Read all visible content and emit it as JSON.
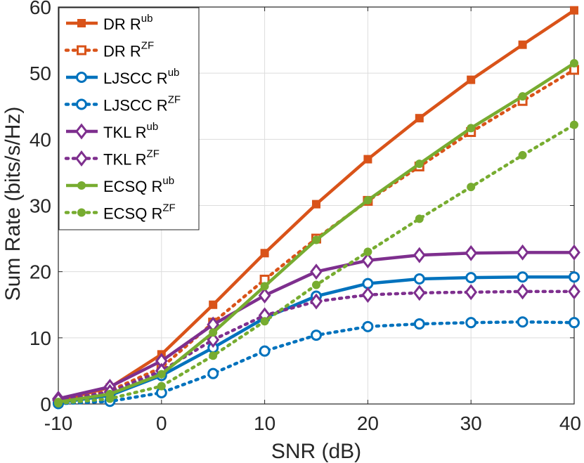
{
  "chart_data": {
    "type": "line",
    "title": "",
    "xlabel": "SNR (dB)",
    "ylabel": "Sum Rate (bits/s/Hz)",
    "xlim": [
      -10,
      40
    ],
    "ylim": [
      0,
      60
    ],
    "grid": true,
    "legend_position": "top-left",
    "x": [
      -10,
      -5,
      0,
      5,
      10,
      15,
      20,
      25,
      30,
      35,
      40
    ],
    "xticks": [
      "-10",
      "0",
      "10",
      "20",
      "30",
      "40"
    ],
    "xtick_values": [
      -10,
      0,
      10,
      20,
      30,
      40
    ],
    "yticks": [
      "0",
      "10",
      "20",
      "30",
      "40",
      "50",
      "60"
    ],
    "ytick_values": [
      0,
      10,
      20,
      30,
      40,
      50,
      60
    ],
    "series": [
      {
        "name": "DR R",
        "sup": "ub",
        "color": "#D95319",
        "dash": "solid",
        "marker": "square",
        "values": [
          0.5,
          2.5,
          7.5,
          15.0,
          22.8,
          30.2,
          37.0,
          43.2,
          49.0,
          54.3,
          59.5
        ]
      },
      {
        "name": "DR R",
        "sup": "ZF",
        "color": "#D95319",
        "dash": "dotted",
        "marker": "square",
        "values": [
          0.3,
          2.0,
          5.5,
          12.3,
          18.8,
          25.0,
          30.7,
          35.9,
          41.1,
          45.8,
          50.5
        ]
      },
      {
        "name": "LJSCC R",
        "sup": "ub",
        "color": "#0072BD",
        "dash": "solid",
        "marker": "circle",
        "values": [
          0.2,
          1.3,
          4.3,
          8.5,
          13.0,
          16.3,
          18.2,
          18.9,
          19.1,
          19.2,
          19.2
        ]
      },
      {
        "name": "LJSCC R",
        "sup": "ZF",
        "color": "#0072BD",
        "dash": "dotted",
        "marker": "circle",
        "values": [
          0.05,
          0.4,
          1.7,
          4.6,
          8.0,
          10.4,
          11.7,
          12.1,
          12.3,
          12.4,
          12.3
        ]
      },
      {
        "name": "TKL R",
        "sup": "ub",
        "color": "#7E2F8E",
        "dash": "solid",
        "marker": "diamond",
        "values": [
          0.8,
          2.6,
          6.5,
          12.0,
          16.4,
          20.0,
          21.7,
          22.5,
          22.8,
          22.9,
          22.9
        ]
      },
      {
        "name": "TKL R",
        "sup": "ZF",
        "color": "#7E2F8E",
        "dash": "dotted",
        "marker": "diamond",
        "values": [
          0.6,
          1.8,
          5.0,
          9.7,
          13.4,
          15.5,
          16.5,
          16.8,
          16.9,
          17.0,
          17.0
        ]
      },
      {
        "name": "ECSQ R",
        "sup": "ub",
        "color": "#77AC30",
        "dash": "solid",
        "marker": "dot",
        "values": [
          0.3,
          1.5,
          4.5,
          10.8,
          17.8,
          24.8,
          30.8,
          36.3,
          41.7,
          46.5,
          51.5
        ]
      },
      {
        "name": "ECSQ R",
        "sup": "ZF",
        "color": "#77AC30",
        "dash": "dotted",
        "marker": "dot",
        "values": [
          0.1,
          0.8,
          2.7,
          7.3,
          12.5,
          18.0,
          23.0,
          28.0,
          32.8,
          37.6,
          42.2
        ]
      }
    ]
  }
}
